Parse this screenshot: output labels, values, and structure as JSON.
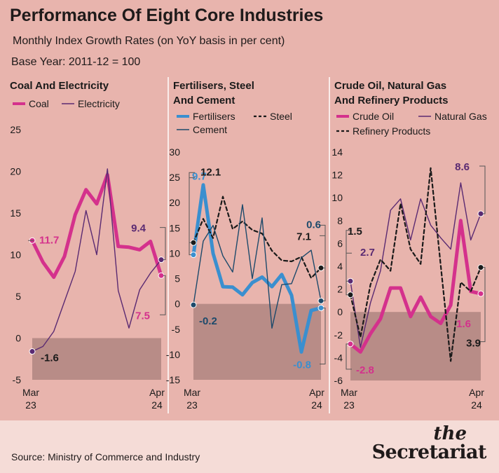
{
  "header": {
    "title": "Performance Of Eight Core Industries",
    "subtitle": "Monthly Index Growth Rates (on YoY basis in per cent)",
    "base_year": "Base Year: 2011-12 = 100"
  },
  "footer": {
    "source": "Source: Ministry of Commerce and Industry",
    "logo_the": "the",
    "logo_name": "Secretariat"
  },
  "colors": {
    "background": "#e8b4ad",
    "negative_band": "#b88c87",
    "magenta": "#d4318c",
    "purple": "#5a2a72",
    "blue": "#3a8fcf",
    "navy": "#1d4a6b",
    "black": "#1a1a1a",
    "footer": "#f5dcd7"
  },
  "chart_data": [
    {
      "type": "line",
      "title": "Coal And Electricity",
      "x_start_label": [
        "Mar",
        "23"
      ],
      "x_end_label": [
        "Apr",
        "24"
      ],
      "yticks": [
        25,
        20,
        15,
        10,
        5,
        0,
        -5
      ],
      "ylim": [
        -5,
        25
      ],
      "legend_rows": [
        [
          "Coal",
          "Electricity"
        ]
      ],
      "series": [
        {
          "name": "Coal",
          "style": "thick",
          "color": "#d4318c",
          "values": [
            11.7,
            9.1,
            7.3,
            9.8,
            14.8,
            17.8,
            16.1,
            19.6,
            11.0,
            10.9,
            10.6,
            11.6,
            7.5
          ]
        },
        {
          "name": "Electricity",
          "style": "thin",
          "color": "#5a2a72",
          "values": [
            -1.6,
            -1.0,
            0.8,
            4.4,
            8.0,
            15.3,
            10.0,
            20.3,
            5.7,
            1.2,
            5.8,
            7.8,
            9.4
          ]
        }
      ],
      "annotations": [
        {
          "text": "11.7",
          "color": "#d4318c"
        },
        {
          "text": "-1.6",
          "color": "#1a1a1a"
        },
        {
          "text": "9.4",
          "color": "#5a2a72"
        },
        {
          "text": "7.5",
          "color": "#d4318c"
        }
      ]
    },
    {
      "type": "line",
      "title": "Fertilisers, Steel And Cement",
      "title_lines": [
        "Fertilisers, Steel",
        "And Cement"
      ],
      "x_start_label": [
        "Mar",
        "23"
      ],
      "x_end_label": [
        "Apr",
        "24"
      ],
      "yticks": [
        30,
        25,
        20,
        15,
        10,
        5,
        0,
        -5,
        -10,
        -15
      ],
      "ylim": [
        -15,
        30
      ],
      "legend_rows": [
        [
          "Fertilisers",
          "Steel"
        ],
        [
          "Cement"
        ]
      ],
      "series": [
        {
          "name": "Fertilisers",
          "style": "thick",
          "color": "#3a8fcf",
          "values": [
            9.7,
            23.5,
            10.0,
            3.4,
            3.3,
            1.8,
            4.2,
            5.3,
            3.4,
            5.8,
            1.7,
            -9.5,
            -1.3,
            -0.8
          ]
        },
        {
          "name": "Steel",
          "style": "dashed",
          "color": "#1a1a1a",
          "values": [
            12.1,
            16.8,
            13.0,
            21.2,
            14.8,
            16.3,
            14.6,
            13.9,
            10.5,
            8.6,
            8.4,
            9.3,
            5.1,
            7.1
          ]
        },
        {
          "name": "Cement",
          "style": "thin",
          "color": "#1d4a6b",
          "values": [
            -0.2,
            12.4,
            15.5,
            9.5,
            6.3,
            19.6,
            5.0,
            17.0,
            -4.8,
            3.8,
            4.0,
            9.1,
            10.6,
            0.6
          ]
        }
      ],
      "annotations": [
        {
          "text": "9.7",
          "color": "#3a8fcf"
        },
        {
          "text": "12.1",
          "color": "#1a1a1a"
        },
        {
          "text": "-0.2",
          "color": "#1d4a6b"
        },
        {
          "text": "0.6",
          "color": "#1d4a6b"
        },
        {
          "text": "7.1",
          "color": "#1a1a1a"
        },
        {
          "text": "-0.8",
          "color": "#3a8fcf"
        }
      ]
    },
    {
      "type": "line",
      "title": "Crude Oil, Natural Gas And Refinery Products",
      "title_lines": [
        "Crude Oil, Natural Gas",
        "And Refinery Products"
      ],
      "x_start_label": [
        "Mar",
        "23"
      ],
      "x_end_label": [
        "Apr",
        "24"
      ],
      "yticks": [
        14,
        12,
        10,
        8,
        6,
        4,
        2,
        0,
        -2,
        -4,
        -6
      ],
      "ylim": [
        -6,
        14
      ],
      "legend_rows": [
        [
          "Crude Oil",
          "Natural Gas"
        ],
        [
          "Refinery Products"
        ]
      ],
      "series": [
        {
          "name": "Crude Oil",
          "style": "thick",
          "color": "#d4318c",
          "values": [
            -2.8,
            -3.5,
            -1.9,
            -0.6,
            2.1,
            2.1,
            -0.4,
            1.3,
            -0.4,
            -1.0,
            0.6,
            8.0,
            1.8,
            1.6
          ]
        },
        {
          "name": "Natural Gas",
          "style": "thin",
          "color": "#5a2a72",
          "values": [
            2.7,
            -3.1,
            0.8,
            3.6,
            8.9,
            9.9,
            6.3,
            9.9,
            7.6,
            6.5,
            5.5,
            11.3,
            6.3,
            8.6
          ]
        },
        {
          "name": "Refinery Products",
          "style": "dashed",
          "color": "#1a1a1a",
          "values": [
            1.5,
            -2.2,
            2.4,
            4.6,
            3.6,
            9.5,
            5.5,
            4.2,
            12.6,
            4.1,
            -4.3,
            2.6,
            1.8,
            3.9
          ]
        }
      ],
      "annotations": [
        {
          "text": "1.5",
          "color": "#1a1a1a"
        },
        {
          "text": "2.7",
          "color": "#5a2a72"
        },
        {
          "text": "-2.8",
          "color": "#d4318c"
        },
        {
          "text": "8.6",
          "color": "#5a2a72"
        },
        {
          "text": "1.6",
          "color": "#d4318c"
        },
        {
          "text": "3.9",
          "color": "#1a1a1a"
        }
      ]
    }
  ]
}
